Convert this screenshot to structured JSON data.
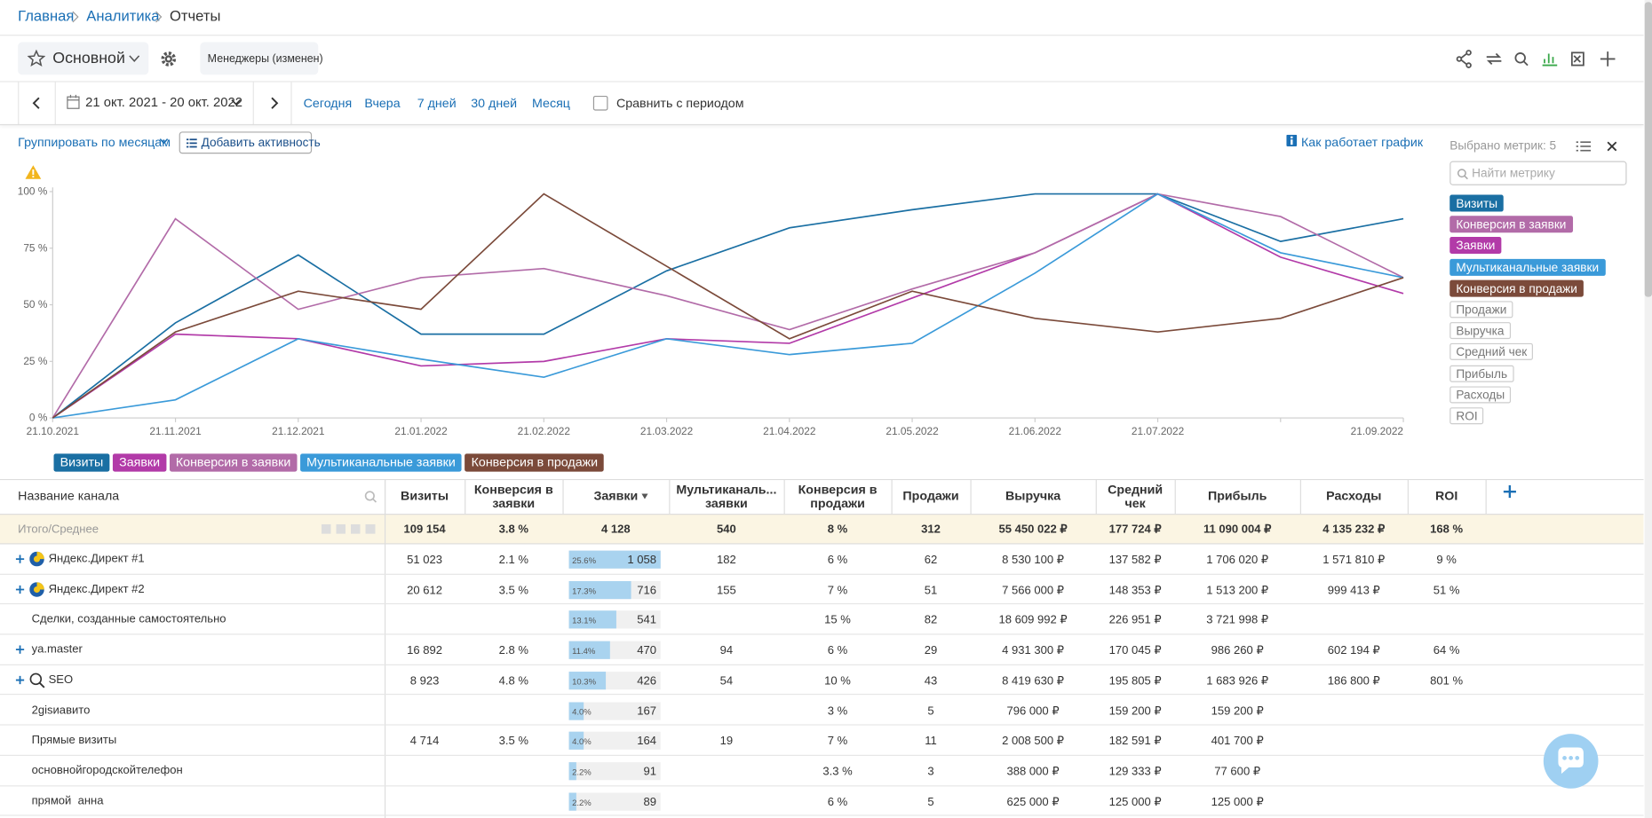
{
  "breadcrumbs": [
    "Главная",
    "Аналитика",
    "Отчеты"
  ],
  "toolbar": {
    "report": "Основной",
    "filter": "Менеджеры (изменен)"
  },
  "period": {
    "range": "21 окт. 2021 - 20 окт. 2022",
    "presets": [
      "Сегодня",
      "Вчера",
      "7 дней",
      "30 дней",
      "Месяц"
    ],
    "compare": "Сравнить с периодом"
  },
  "chart_controls": {
    "group_by": "Группировать по месяцам",
    "add_activity": "Добавить активность",
    "help": "Как работает график"
  },
  "metrics_panel": {
    "title": "Выбрано метрик: 5",
    "search_placeholder": "Найти метрику",
    "metrics": [
      {
        "name": "Визиты",
        "color": "#1a6fa3"
      },
      {
        "name": "Конверсия в заявки",
        "color": "#b26ba8"
      },
      {
        "name": "Заявки",
        "color": "#b23aa8"
      },
      {
        "name": "Мультиканальные заявки",
        "color": "#3a9ad9"
      },
      {
        "name": "Конверсия в продажи",
        "color": "#7b4a3a"
      },
      {
        "name": "Продажи"
      },
      {
        "name": "Выручка"
      },
      {
        "name": "Средний чек"
      },
      {
        "name": "Прибыль"
      },
      {
        "name": "Расходы"
      },
      {
        "name": "ROI"
      }
    ]
  },
  "chart_data": {
    "type": "line",
    "categories": [
      "21.10.2021",
      "21.11.2021",
      "21.12.2021",
      "21.01.2022",
      "21.02.2022",
      "21.03.2022",
      "21.04.2022",
      "21.05.2022",
      "21.06.2022",
      "21.07.2022",
      null,
      "21.09.2022"
    ],
    "ylim": [
      0,
      100
    ],
    "yticks": [
      {
        "value": 0,
        "label": "0 %"
      },
      {
        "value": 25,
        "label": "25 %"
      },
      {
        "value": 50,
        "label": "50 %"
      },
      {
        "value": 75,
        "label": "75 %"
      },
      {
        "value": 100,
        "label": "100 %"
      }
    ],
    "grid": false,
    "series": [
      {
        "name": "Визиты",
        "color": "#1a6fa3",
        "values": [
          0,
          42,
          72,
          37,
          37,
          65,
          84,
          92,
          99,
          99,
          78,
          88
        ]
      },
      {
        "name": "Заявки",
        "color": "#b23aa8",
        "values": [
          0,
          37,
          35,
          23,
          25,
          35,
          33,
          53,
          73,
          99,
          71,
          55
        ]
      },
      {
        "name": "Конверсия в заявки",
        "color": "#b26ba8",
        "values": [
          0,
          88,
          48,
          62,
          66,
          54,
          39,
          57,
          73,
          99,
          89,
          62
        ]
      },
      {
        "name": "Мультиканальные заявки",
        "color": "#3a9ad9",
        "values": [
          0,
          8,
          35,
          26,
          18,
          35,
          28,
          33,
          64,
          99,
          73,
          62
        ]
      },
      {
        "name": "Конверсия в продажи",
        "color": "#7b4a3a",
        "values": [
          0,
          38,
          56,
          48,
          99,
          67,
          35,
          56,
          44,
          38,
          44,
          62
        ]
      }
    ]
  },
  "table": {
    "columns": [
      "Название канала",
      "Визиты",
      "Конверсия в заявки",
      "Заявки",
      "Мультиканаль... заявки",
      "Конверсия в продажи",
      "Продажи",
      "Выручка",
      "Средний чек",
      "Прибыль",
      "Расходы",
      "ROI"
    ],
    "total": {
      "label": "Итого/Среднее",
      "cells": [
        "109 154",
        "3.8 %",
        "4 128",
        "540",
        "8 %",
        "312",
        "55 450 022 ₽",
        "177 724 ₽",
        "11 090 004 ₽",
        "4 135 232 ₽",
        "168 %"
      ]
    },
    "rows": [
      {
        "name": "Яндекс.Директ #1",
        "expandable": true,
        "icon": "yandex",
        "share": 25.6,
        "share_label": "25.6%",
        "cells": [
          "51 023",
          "2.1 %",
          "1 058",
          "182",
          "6 %",
          "62",
          "8 530 100 ₽",
          "137 582 ₽",
          "1 706 020 ₽",
          "1 571 810 ₽",
          "9 %"
        ]
      },
      {
        "name": "Яндекс.Директ #2",
        "expandable": true,
        "icon": "yandex",
        "share": 17.3,
        "share_label": "17.3%",
        "cells": [
          "20 612",
          "3.5 %",
          "716",
          "155",
          "7 %",
          "51",
          "7 566 000 ₽",
          "148 353 ₽",
          "1 513 200 ₽",
          "999 413 ₽",
          "51 %"
        ]
      },
      {
        "name": "Сделки, созданные самостоятельно",
        "expandable": false,
        "share": 13.1,
        "share_label": "13.1%",
        "cells": [
          null,
          null,
          "541",
          null,
          "15 %",
          "82",
          "18 609 992 ₽",
          "226 951 ₽",
          "3 721 998 ₽",
          null,
          null
        ]
      },
      {
        "name": "ya.master",
        "expandable": true,
        "share": 11.4,
        "share_label": "11.4%",
        "cells": [
          "16 892",
          "2.8 %",
          "470",
          "94",
          "6 %",
          "29",
          "4 931 300 ₽",
          "170 045 ₽",
          "986 260 ₽",
          "602 194 ₽",
          "64 %"
        ]
      },
      {
        "name": "SEO",
        "expandable": true,
        "icon": "search",
        "share": 10.3,
        "share_label": "10.3%",
        "cells": [
          "8 923",
          "4.8 %",
          "426",
          "54",
          "10 %",
          "43",
          "8 419 630 ₽",
          "195 805 ₽",
          "1 683 926 ₽",
          "186 800 ₽",
          "801 %"
        ]
      },
      {
        "name": "2gisиавито",
        "expandable": false,
        "share": 4.0,
        "share_label": "4.0%",
        "cells": [
          null,
          null,
          "167",
          null,
          "3 %",
          "5",
          "796 000 ₽",
          "159 200 ₽",
          "159 200 ₽",
          null,
          null
        ]
      },
      {
        "name": "Прямые визиты",
        "expandable": false,
        "share": 4.0,
        "share_label": "4.0%",
        "cells": [
          "4 714",
          "3.5 %",
          "164",
          "19",
          "7 %",
          "11",
          "2 008 500 ₽",
          "182 591 ₽",
          "401 700 ₽",
          null,
          null
        ]
      },
      {
        "name": "основнойгородскойтелефон",
        "expandable": false,
        "share": 2.2,
        "share_label": "2.2%",
        "cells": [
          null,
          null,
          "91",
          null,
          "3.3 %",
          "3",
          "388 000 ₽",
          "129 333 ₽",
          "77 600 ₽",
          null,
          null
        ]
      },
      {
        "name": "прямой  анна",
        "expandable": false,
        "share": 2.2,
        "share_label": "2.2%",
        "cells": [
          null,
          null,
          "89",
          null,
          "6 %",
          "5",
          "625 000 ₽",
          "125 000 ₽",
          "125 000 ₽",
          null,
          null
        ]
      }
    ]
  }
}
